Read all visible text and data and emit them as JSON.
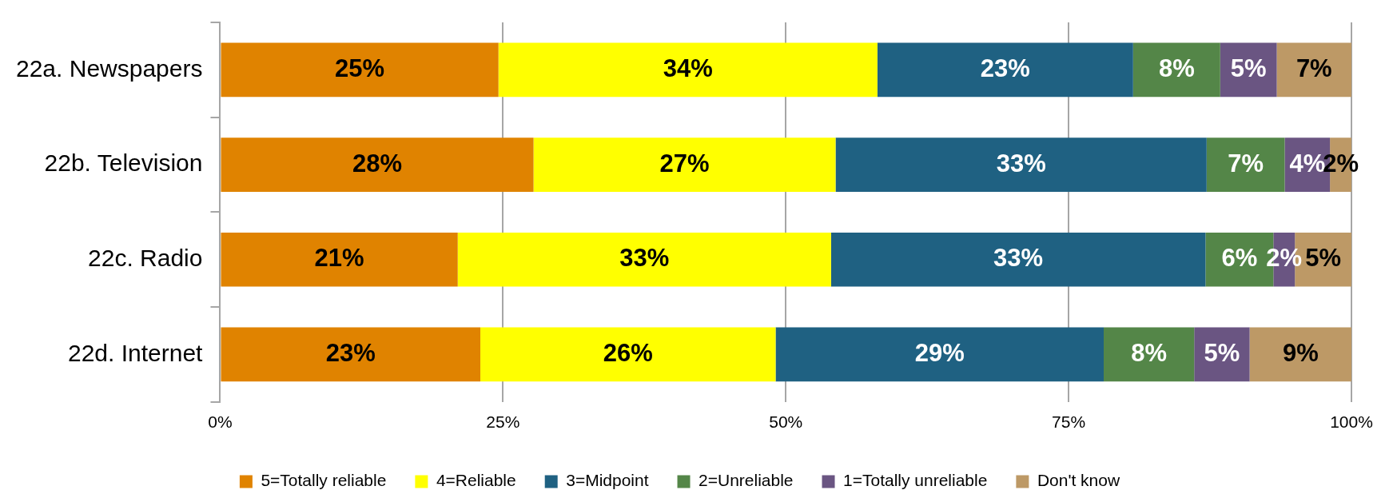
{
  "chart_data": {
    "type": "bar",
    "orientation": "horizontal",
    "stacked": true,
    "categories": [
      "22a. Newspapers",
      "22b. Television",
      "22c. Radio",
      "22d. Internet"
    ],
    "series": [
      {
        "name": "5=Totally reliable",
        "color": "#e08300",
        "values": [
          24.6,
          27.7,
          21.0,
          23.0
        ],
        "value_labels": [
          "25%",
          "28%",
          "21%",
          "23%"
        ]
      },
      {
        "name": "4=Reliable",
        "color": "#ffff00",
        "values": [
          33.5,
          26.7,
          33.0,
          26.1
        ],
        "value_labels": [
          "34%",
          "27%",
          "33%",
          "26%"
        ]
      },
      {
        "name": "3=Midpoint",
        "color": "#1f6182",
        "values": [
          22.6,
          32.8,
          33.1,
          29.0
        ],
        "value_labels": [
          "23%",
          "33%",
          "33%",
          "29%"
        ]
      },
      {
        "name": "2=Unreliable",
        "color": "#548648",
        "values": [
          7.7,
          6.9,
          6.0,
          8.0
        ],
        "value_labels": [
          "8%",
          "7%",
          "6%",
          "8%"
        ]
      },
      {
        "name": "1=Totally unreliable",
        "color": "#6a5582",
        "values": [
          5.0,
          4.0,
          1.9,
          4.9
        ],
        "value_labels": [
          "5%",
          "4%",
          "2%",
          "5%"
        ]
      },
      {
        "name": "Don't know",
        "color": "#bd9966",
        "values": [
          6.6,
          1.9,
          5.0,
          9.0
        ],
        "value_labels": [
          "7%",
          "2%",
          "5%",
          "9%"
        ]
      }
    ],
    "xlim": [
      0,
      100
    ],
    "xticks": [
      {
        "value": 0,
        "label": "0%"
      },
      {
        "value": 25,
        "label": "25%"
      },
      {
        "value": 50,
        "label": "50%"
      },
      {
        "value": 75,
        "label": "75%"
      },
      {
        "value": 100,
        "label": "100%"
      }
    ],
    "grid": "x",
    "legend": "bottom"
  }
}
